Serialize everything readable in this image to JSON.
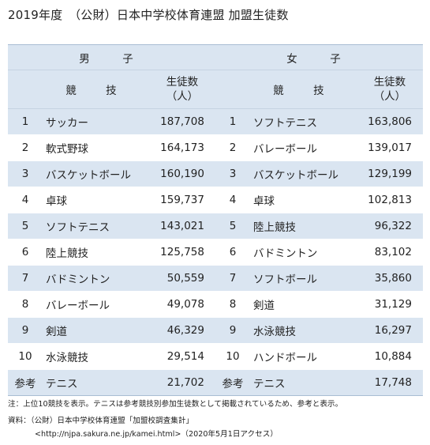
{
  "title": "2019年度　（公財）日本中学校体育連盟 加盟生徒数",
  "header": {
    "male": "男　子",
    "female": "女　子",
    "sport_col": "競　技",
    "count_col_line1": "生徒数",
    "count_col_line2": "（人）"
  },
  "male": [
    {
      "rank": "1",
      "sport": "サッカー",
      "count": "187,708"
    },
    {
      "rank": "2",
      "sport": "軟式野球",
      "count": "164,173"
    },
    {
      "rank": "3",
      "sport": "バスケットボール",
      "count": "160,190"
    },
    {
      "rank": "4",
      "sport": "卓球",
      "count": "159,737"
    },
    {
      "rank": "5",
      "sport": "ソフトテニス",
      "count": "143,021"
    },
    {
      "rank": "6",
      "sport": "陸上競技",
      "count": "125,758"
    },
    {
      "rank": "7",
      "sport": "バドミントン",
      "count": "50,559"
    },
    {
      "rank": "8",
      "sport": "バレーボール",
      "count": "49,078"
    },
    {
      "rank": "9",
      "sport": "剣道",
      "count": "46,329"
    },
    {
      "rank": "10",
      "sport": "水泳競技",
      "count": "29,514"
    }
  ],
  "female": [
    {
      "rank": "1",
      "sport": "ソフトテニス",
      "count": "163,806"
    },
    {
      "rank": "2",
      "sport": "バレーボール",
      "count": "139,017"
    },
    {
      "rank": "3",
      "sport": "バスケットボール",
      "count": "129,199"
    },
    {
      "rank": "4",
      "sport": "卓球",
      "count": "102,813"
    },
    {
      "rank": "5",
      "sport": "陸上競技",
      "count": "96,322"
    },
    {
      "rank": "6",
      "sport": "バドミントン",
      "count": "83,102"
    },
    {
      "rank": "7",
      "sport": "ソフトボール",
      "count": "35,860"
    },
    {
      "rank": "8",
      "sport": "剣道",
      "count": "31,129"
    },
    {
      "rank": "9",
      "sport": "水泳競技",
      "count": "16,297"
    },
    {
      "rank": "10",
      "sport": "ハンドボール",
      "count": "10,884"
    }
  ],
  "reference": {
    "label": "参考",
    "male_sport": "テニス",
    "male_count": "21,702",
    "female_sport": "テニス",
    "female_count": "17,748"
  },
  "notes": {
    "note": "注：上位10競技を表示。テニスは参考競技別参加生徒数として掲載されているため、参考と表示。",
    "source": "資料：（公財）日本中学校体育連盟「加盟校調査集計」",
    "url": "<http://njpa.sakura.ne.jp/kamei.html>（2020年5月1日アクセス）"
  },
  "colors": {
    "band": "#dae5f1",
    "rule": "#a9bdd3"
  }
}
